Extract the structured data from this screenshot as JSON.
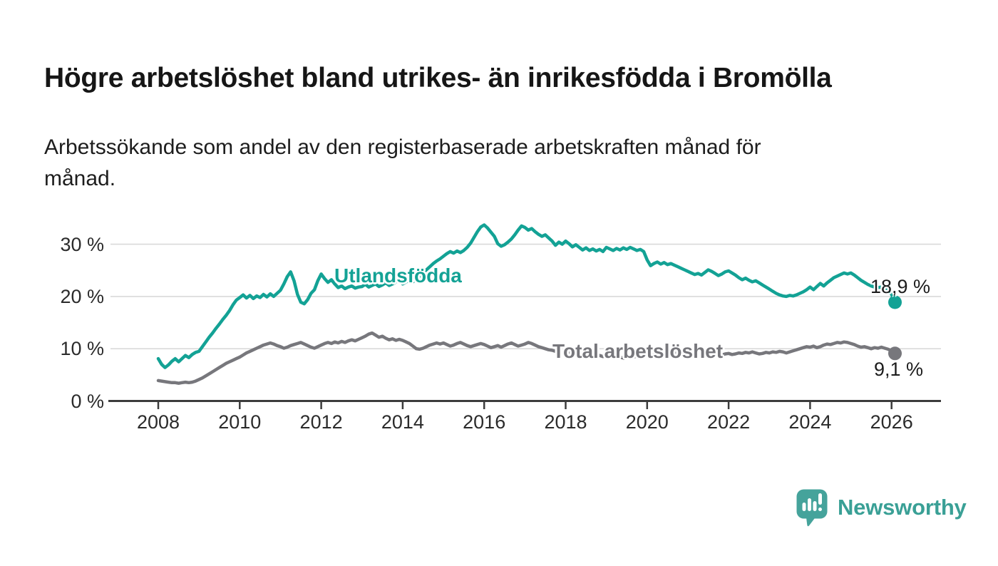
{
  "header": {
    "title": "Högre arbetslöshet bland utrikes- än inrikesfödda i Bromölla",
    "subtitle_lines": [
      "Arbetssökande som andel av den registerbaserade arbetskraften månad för",
      "månad."
    ]
  },
  "chart_data": {
    "type": "line",
    "title": "Högre arbetslöshet bland utrikes- än inrikesfödda i Bromölla",
    "xlabel": "",
    "ylabel": "",
    "frequency": "monthly",
    "x_start": "2008-01",
    "x_end": "2026-02",
    "xlim": [
      2006.8,
      2027.2
    ],
    "ylim": [
      0,
      36
    ],
    "grid": "horizontal",
    "legend_position": "inline-labels",
    "x_ticks": [
      "2008",
      "2010",
      "2012",
      "2014",
      "2016",
      "2018",
      "2020",
      "2022",
      "2024",
      "2026"
    ],
    "y_ticks": [
      {
        "label": "0 %",
        "value": 0
      },
      {
        "label": "10 %",
        "value": 10
      },
      {
        "label": "20 %",
        "value": 20
      },
      {
        "label": "30 %",
        "value": 30
      }
    ],
    "series": [
      {
        "name": "Utlandsfödda",
        "color": "#13a295",
        "end_label": "18,9 %",
        "end_value": 18.9,
        "values": [
          8.1,
          7.0,
          6.4,
          6.9,
          7.6,
          8.1,
          7.5,
          8.1,
          8.7,
          8.3,
          8.9,
          9.3,
          9.5,
          10.4,
          11.3,
          12.2,
          13.0,
          13.9,
          14.7,
          15.6,
          16.4,
          17.3,
          18.4,
          19.3,
          19.8,
          20.3,
          19.7,
          20.2,
          19.6,
          20.1,
          19.8,
          20.4,
          19.9,
          20.5,
          20.0,
          20.6,
          21.2,
          22.4,
          23.8,
          24.7,
          23.0,
          20.4,
          18.9,
          18.6,
          19.4,
          20.6,
          21.3,
          23.0,
          24.3,
          23.4,
          22.7,
          23.2,
          22.4,
          21.7,
          22.0,
          21.5,
          21.8,
          22.0,
          21.6,
          21.8,
          21.9,
          22.3,
          21.8,
          22.1,
          22.4,
          21.9,
          22.2,
          22.6,
          22.1,
          22.4,
          22.8,
          23.1,
          22.4,
          22.8,
          23.1,
          22.8,
          23.4,
          23.9,
          24.5,
          25.1,
          25.7,
          26.3,
          26.8,
          27.2,
          27.7,
          28.2,
          28.6,
          28.3,
          28.7,
          28.4,
          28.8,
          29.4,
          30.2,
          31.3,
          32.4,
          33.3,
          33.7,
          33.1,
          32.3,
          31.5,
          30.1,
          29.6,
          29.9,
          30.4,
          31.0,
          31.8,
          32.7,
          33.5,
          33.2,
          32.7,
          33.0,
          32.4,
          31.9,
          31.5,
          31.8,
          31.2,
          30.6,
          29.8,
          30.4,
          30.0,
          30.6,
          30.1,
          29.5,
          29.9,
          29.4,
          28.9,
          29.3,
          28.8,
          29.1,
          28.7,
          29.0,
          28.6,
          29.4,
          29.1,
          28.8,
          29.2,
          28.9,
          29.3,
          29.0,
          29.4,
          29.1,
          28.8,
          29.0,
          28.6,
          27.0,
          25.9,
          26.3,
          26.6,
          26.2,
          26.5,
          26.1,
          26.3,
          26.0,
          25.7,
          25.4,
          25.1,
          24.8,
          24.5,
          24.2,
          24.4,
          24.1,
          24.6,
          25.1,
          24.8,
          24.4,
          24.0,
          24.3,
          24.7,
          24.9,
          24.5,
          24.1,
          23.6,
          23.2,
          23.5,
          23.1,
          22.8,
          23.0,
          22.6,
          22.2,
          21.8,
          21.4,
          21.0,
          20.6,
          20.3,
          20.1,
          20.0,
          20.2,
          20.1,
          20.3,
          20.6,
          20.9,
          21.3,
          21.8,
          21.3,
          21.9,
          22.5,
          22.0,
          22.6,
          23.1,
          23.6,
          23.9,
          24.2,
          24.5,
          24.3,
          24.5,
          24.1,
          23.6,
          23.1,
          22.7,
          22.3,
          22.0,
          21.8,
          21.7,
          21.8,
          21.6,
          21.2,
          20.4,
          18.9
        ]
      },
      {
        "name": "Total arbetslöshet",
        "color": "#77777c",
        "end_label": "9,1 %",
        "end_value": 9.1,
        "values": [
          3.9,
          3.8,
          3.7,
          3.6,
          3.5,
          3.5,
          3.4,
          3.5,
          3.6,
          3.5,
          3.6,
          3.8,
          4.1,
          4.4,
          4.8,
          5.2,
          5.6,
          6.0,
          6.4,
          6.8,
          7.2,
          7.5,
          7.8,
          8.1,
          8.4,
          8.8,
          9.2,
          9.5,
          9.8,
          10.1,
          10.4,
          10.7,
          10.9,
          11.1,
          10.9,
          10.6,
          10.4,
          10.1,
          10.3,
          10.6,
          10.8,
          11.0,
          11.2,
          10.9,
          10.6,
          10.3,
          10.1,
          10.4,
          10.7,
          11.0,
          11.2,
          11.0,
          11.3,
          11.1,
          11.4,
          11.2,
          11.5,
          11.7,
          11.5,
          11.8,
          12.1,
          12.4,
          12.8,
          13.0,
          12.6,
          12.2,
          12.4,
          12.0,
          11.7,
          11.9,
          11.6,
          11.8,
          11.6,
          11.3,
          11.0,
          10.5,
          10.0,
          9.9,
          10.1,
          10.4,
          10.7,
          10.9,
          11.1,
          10.9,
          11.1,
          10.8,
          10.5,
          10.7,
          11.0,
          11.2,
          10.9,
          10.6,
          10.4,
          10.6,
          10.8,
          11.0,
          10.8,
          10.5,
          10.2,
          10.4,
          10.6,
          10.3,
          10.6,
          10.9,
          11.1,
          10.8,
          10.5,
          10.7,
          10.9,
          11.2,
          11.0,
          10.7,
          10.4,
          10.2,
          10.0,
          9.8,
          9.7,
          9.5,
          9.6,
          9.4,
          9.3,
          9.2,
          9.0,
          9.1,
          8.9,
          8.8,
          8.9,
          8.7,
          8.8,
          8.6,
          8.7,
          8.5,
          8.6,
          8.4,
          8.5,
          8.3,
          8.4,
          8.2,
          8.3,
          8.5,
          8.4,
          8.6,
          8.5,
          8.7,
          8.8,
          8.6,
          8.9,
          9.2,
          9.4,
          9.3,
          9.1,
          9.0,
          9.2,
          9.1,
          8.9,
          9.0,
          9.1,
          8.9,
          8.8,
          9.0,
          8.9,
          8.7,
          8.8,
          8.6,
          8.7,
          8.9,
          8.8,
          9.0,
          9.1,
          8.9,
          9.0,
          9.2,
          9.1,
          9.3,
          9.2,
          9.4,
          9.2,
          9.0,
          9.1,
          9.3,
          9.2,
          9.4,
          9.3,
          9.5,
          9.4,
          9.2,
          9.4,
          9.6,
          9.8,
          10.0,
          10.2,
          10.4,
          10.3,
          10.5,
          10.2,
          10.4,
          10.7,
          10.9,
          10.8,
          11.0,
          11.2,
          11.1,
          11.3,
          11.2,
          11.0,
          10.8,
          10.5,
          10.3,
          10.4,
          10.2,
          10.0,
          10.2,
          10.1,
          10.3,
          10.1,
          9.9,
          9.6,
          9.1
        ]
      }
    ],
    "axis_color": "#3c3c3c",
    "gridline_color": "#d9d9d9"
  },
  "branding": {
    "wordmark": "Newsworthy",
    "logo_icon": "newsworthy-speech-bubble-bar-chart-icon",
    "color": "#3aa096",
    "bubble_color": "#45a39b"
  }
}
